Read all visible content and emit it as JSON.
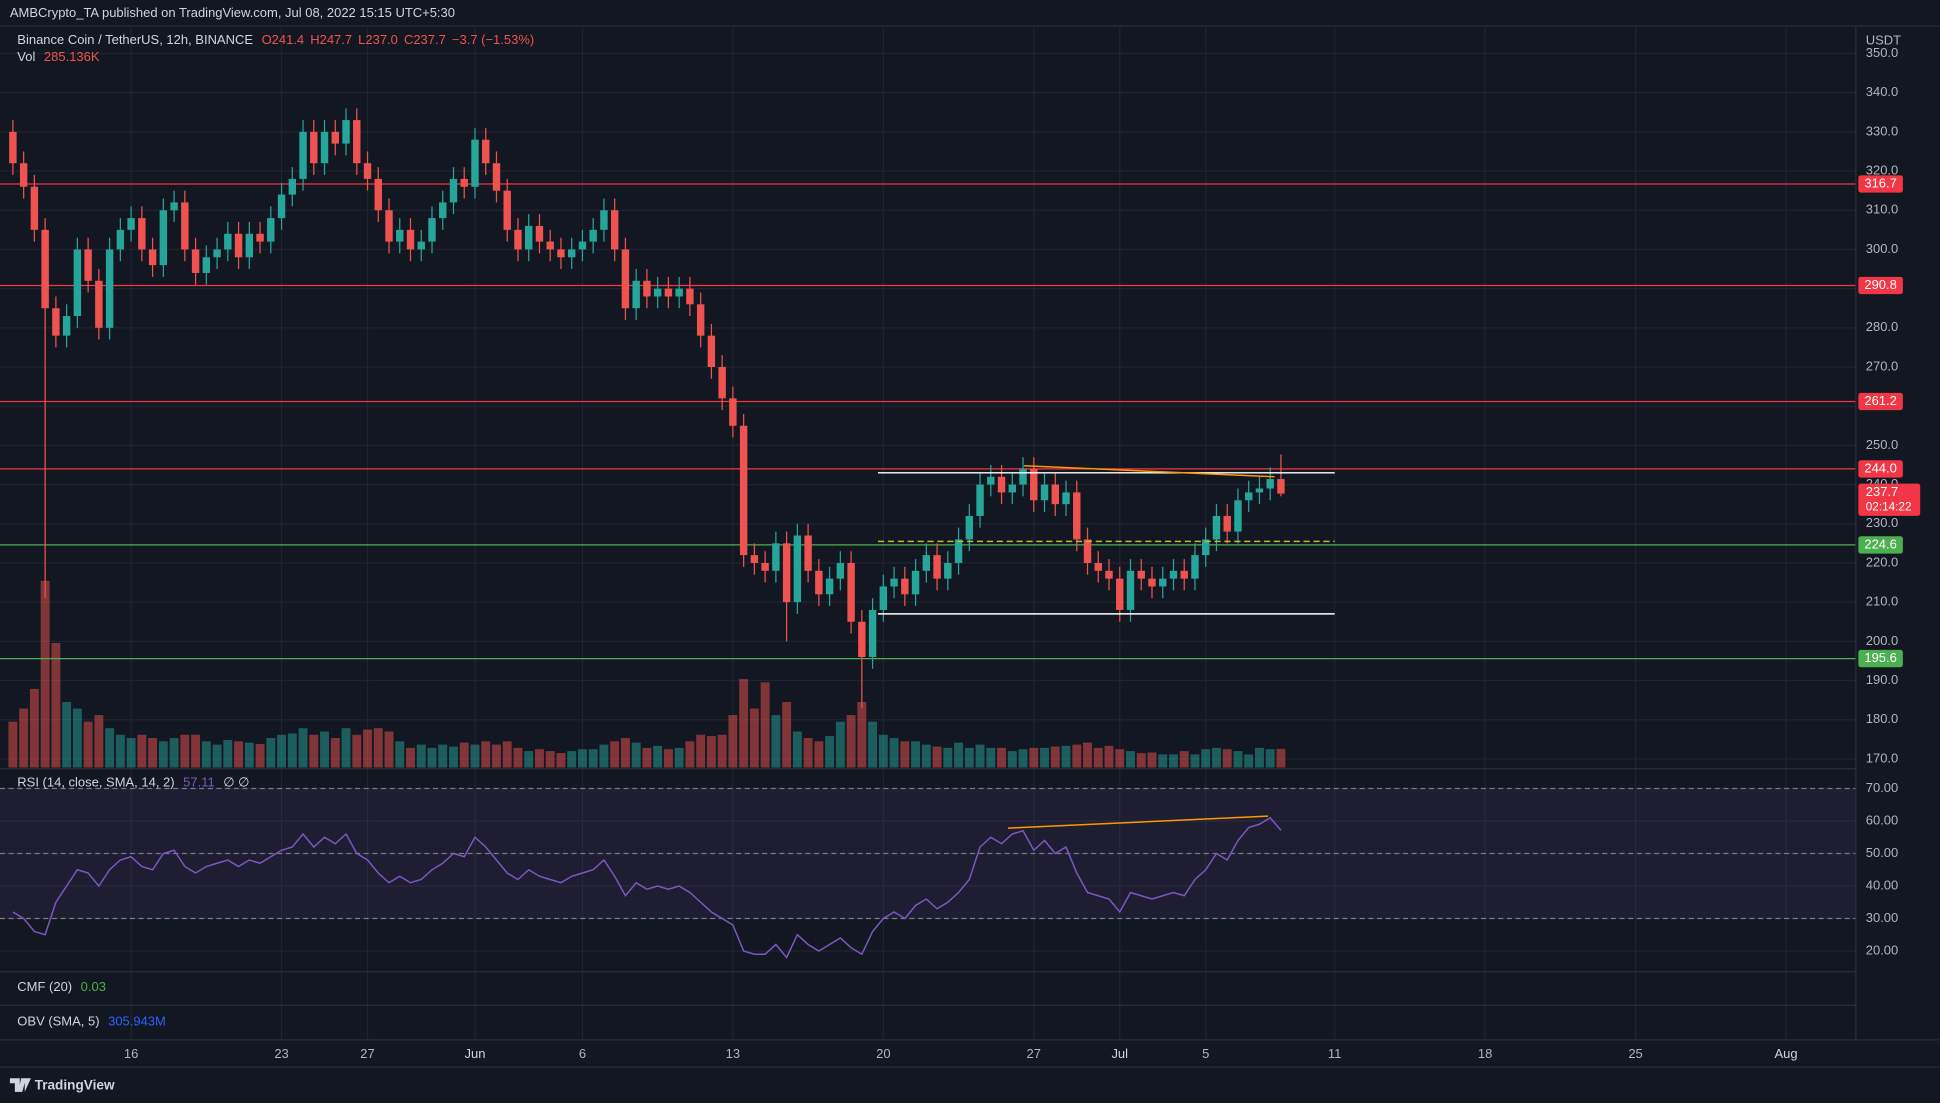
{
  "header": {
    "publisher": "AMBCrypto_TA published on TradingView.com, Jul 08, 2022 15:15 UTC+5:30",
    "symbol": "Binance Coin / TetherUS, 12h, BINANCE",
    "ohlc": [
      "O241.4",
      "H247.7",
      "L237.0",
      "C237.7",
      "−3.7 (−1.53%)"
    ],
    "currency": "USDT",
    "footer": "TradingView"
  },
  "chart_data": {
    "type": "candlestick",
    "xlim": [
      -1.2,
      171.5
    ],
    "ylim": [
      167.8,
      356.7
    ],
    "xticks": [
      {
        "value": 11,
        "label": "16"
      },
      {
        "value": 25,
        "label": "23"
      },
      {
        "value": 33,
        "label": "27"
      },
      {
        "value": 43,
        "label": "Jun"
      },
      {
        "value": 53,
        "label": "6"
      },
      {
        "value": 67,
        "label": "13"
      },
      {
        "value": 81,
        "label": "20"
      },
      {
        "value": 95,
        "label": "27"
      },
      {
        "value": 103,
        "label": "Jul"
      },
      {
        "value": 111,
        "label": "5"
      },
      {
        "value": 123,
        "label": "11"
      },
      {
        "value": 137,
        "label": "18"
      },
      {
        "value": 151,
        "label": "25"
      },
      {
        "value": 165,
        "label": "Aug"
      }
    ],
    "yticks": [
      {
        "value": 170,
        "label": "170.0"
      },
      {
        "value": 180,
        "label": "180.0"
      },
      {
        "value": 190,
        "label": "190.0"
      },
      {
        "value": 200,
        "label": "200.0"
      },
      {
        "value": 210,
        "label": "210.0"
      },
      {
        "value": 220,
        "label": "220.0"
      },
      {
        "value": 230,
        "label": "230.0"
      },
      {
        "value": 240,
        "label": "240.0"
      },
      {
        "value": 250,
        "label": "250.0"
      },
      {
        "value": 260,
        "label": "260.0"
      },
      {
        "value": 270,
        "label": "270.0"
      },
      {
        "value": 280,
        "label": "280.0"
      },
      {
        "value": 290,
        "label": "290.0"
      },
      {
        "value": 300,
        "label": "300.0"
      },
      {
        "value": 310,
        "label": "310.0"
      },
      {
        "value": 320,
        "label": "320.0"
      },
      {
        "value": 330,
        "label": "330.0"
      },
      {
        "value": 340,
        "label": "340.0"
      },
      {
        "value": 350,
        "label": "350.0"
      }
    ],
    "up_color": "#26a69a",
    "down_color": "#ef5350",
    "open": [
      330,
      322,
      316,
      305,
      285,
      278,
      283,
      300,
      292,
      280,
      300,
      305,
      308,
      300,
      296,
      310,
      312,
      300,
      294,
      298,
      300,
      304,
      298,
      304,
      302,
      308,
      314,
      318,
      330,
      322,
      330,
      327,
      333,
      322,
      318,
      310,
      302,
      305,
      300,
      302,
      308,
      312,
      318,
      316,
      328,
      322,
      315,
      305,
      300,
      306,
      302,
      300,
      298,
      300,
      302,
      305,
      310,
      300,
      285,
      292,
      288,
      290,
      288,
      290,
      286,
      278,
      270,
      262,
      255,
      222,
      220,
      218,
      225,
      210,
      227,
      218,
      212,
      216,
      220,
      205,
      196,
      208,
      214,
      216,
      212,
      218,
      222,
      216,
      220,
      226,
      232,
      240,
      242,
      238,
      240,
      244,
      236,
      240,
      235,
      238,
      226,
      220,
      218,
      216,
      208,
      218,
      216,
      214,
      216,
      218,
      216,
      222,
      226,
      232,
      228,
      236,
      238,
      239,
      241.4
    ],
    "high": [
      333,
      325,
      319,
      308,
      288,
      286,
      303,
      303,
      295,
      303,
      308,
      311,
      311,
      303,
      313,
      315,
      315,
      303,
      301,
      303,
      307,
      307,
      307,
      307,
      311,
      317,
      321,
      333,
      333,
      333,
      333,
      336,
      336,
      325,
      321,
      313,
      308,
      308,
      305,
      311,
      315,
      321,
      321,
      331,
      331,
      325,
      318,
      308,
      309,
      309,
      305,
      303,
      303,
      305,
      308,
      313,
      313,
      303,
      295,
      295,
      293,
      293,
      293,
      293,
      289,
      281,
      273,
      265,
      258,
      225,
      223,
      228,
      228,
      230,
      230,
      221,
      219,
      223,
      223,
      208,
      211,
      217,
      219,
      219,
      221,
      225,
      225,
      223,
      229,
      235,
      243,
      245,
      245,
      243,
      247,
      247,
      243,
      243,
      241,
      241,
      229,
      223,
      221,
      219,
      221,
      221,
      219,
      219,
      221,
      221,
      225,
      229,
      235,
      235,
      239,
      241,
      242,
      244.4,
      247.7
    ],
    "low": [
      319,
      313,
      302,
      211,
      275,
      275,
      280,
      289,
      277,
      277,
      297,
      302,
      297,
      293,
      293,
      307,
      297,
      291,
      291,
      295,
      297,
      295,
      295,
      299,
      299,
      305,
      311,
      315,
      319,
      319,
      324,
      324,
      319,
      315,
      307,
      299,
      299,
      297,
      297,
      299,
      305,
      309,
      313,
      313,
      319,
      312,
      302,
      297,
      297,
      299,
      297,
      295,
      295,
      297,
      299,
      302,
      297,
      282,
      282,
      285,
      285,
      285,
      285,
      283,
      275,
      267,
      259,
      252,
      219,
      217,
      215,
      215,
      200,
      207,
      215,
      209,
      209,
      213,
      202,
      183,
      193,
      205,
      211,
      209,
      209,
      215,
      213,
      213,
      217,
      223,
      229,
      237,
      235,
      235,
      237,
      233,
      233,
      232,
      232,
      223,
      217,
      215,
      213,
      205,
      205,
      213,
      211,
      211,
      213,
      213,
      213,
      219,
      223,
      225,
      225,
      233,
      235,
      236,
      237.0
    ],
    "close": [
      322,
      316,
      305,
      285,
      278,
      283,
      300,
      292,
      280,
      300,
      305,
      308,
      300,
      296,
      310,
      312,
      300,
      294,
      298,
      300,
      304,
      298,
      304,
      302,
      308,
      314,
      318,
      330,
      322,
      330,
      327,
      333,
      322,
      318,
      310,
      302,
      305,
      300,
      302,
      308,
      312,
      318,
      316,
      328,
      322,
      315,
      305,
      300,
      306,
      302,
      300,
      298,
      300,
      302,
      305,
      310,
      300,
      285,
      292,
      288,
      290,
      288,
      290,
      286,
      278,
      270,
      262,
      255,
      222,
      220,
      218,
      225,
      210,
      227,
      218,
      212,
      216,
      220,
      205,
      196,
      208,
      214,
      216,
      212,
      218,
      222,
      216,
      220,
      226,
      232,
      240,
      242,
      238,
      240,
      244,
      236,
      240,
      235,
      238,
      226,
      220,
      218,
      216,
      208,
      218,
      216,
      214,
      216,
      218,
      216,
      222,
      226,
      232,
      228,
      236,
      238,
      239,
      241.4,
      237.7
    ],
    "countdown": "02:14:22",
    "current_color": "#f23645",
    "levels": [
      {
        "value": 316.7,
        "color": "#f23645"
      },
      {
        "value": 290.8,
        "color": "#f23645"
      },
      {
        "value": 261.2,
        "color": "#f23645"
      },
      {
        "value": 244,
        "label": "244.0",
        "color": "#f23645"
      },
      {
        "value": 224.6,
        "color": "#4caf50"
      },
      {
        "value": 195.6,
        "color": "#4caf50"
      }
    ],
    "drawings": [
      {
        "type": "segment",
        "from": [
          80.5,
          243
        ],
        "to": [
          123,
          243
        ],
        "color": "#ffffff",
        "dashed": false
      },
      {
        "type": "segment",
        "from": [
          80.5,
          207
        ],
        "to": [
          123,
          207
        ],
        "color": "#ffffff",
        "dashed": false
      },
      {
        "type": "segment",
        "from": [
          80.5,
          225.5
        ],
        "to": [
          123,
          225.5
        ],
        "color": "#c8b632",
        "dashed": true
      },
      {
        "type": "segment",
        "from": [
          94.1,
          244.8
        ],
        "to": [
          117.4,
          242
        ],
        "color": "#ff9800",
        "dashed": false
      }
    ],
    "volume": {
      "name": "Vol",
      "last_label": "285.136K",
      "ylim": [
        0,
        11300
      ],
      "values": [
        700,
        900,
        1200,
        2850,
        1900,
        1000,
        900,
        700,
        800,
        600,
        500,
        450,
        500,
        450,
        400,
        450,
        500,
        500,
        400,
        350,
        420,
        400,
        380,
        360,
        450,
        500,
        520,
        600,
        500,
        550,
        450,
        600,
        500,
        580,
        600,
        550,
        400,
        300,
        350,
        300,
        350,
        320,
        380,
        350,
        400,
        350,
        400,
        300,
        250,
        280,
        250,
        220,
        250,
        280,
        280,
        350,
        400,
        450,
        380,
        300,
        330,
        280,
        300,
        400,
        500,
        480,
        500,
        800,
        1350,
        900,
        1300,
        800,
        1000,
        550,
        450,
        400,
        480,
        700,
        800,
        1000,
        700,
        500,
        450,
        400,
        400,
        350,
        320,
        300,
        380,
        300,
        350,
        300,
        300,
        250,
        280,
        300,
        300,
        320,
        330,
        350,
        380,
        300,
        330,
        280,
        250,
        220,
        230,
        200,
        200,
        250,
        200,
        280,
        300,
        280,
        250,
        200,
        300,
        280,
        285.136
      ]
    },
    "rsi": {
      "name": "RSI (14, close, SMA, 14, 2)",
      "extra": "∅ ∅",
      "color": "#7e57c2",
      "ylim": [
        13.6,
        75.7
      ],
      "band": [
        30,
        70
      ],
      "levels": [
        70,
        50,
        30
      ],
      "yticks": [
        {
          "value": 20,
          "label": "20.00"
        },
        {
          "value": 30,
          "label": "30.00"
        },
        {
          "value": 40,
          "label": "40.00"
        },
        {
          "value": 50,
          "label": "50.00"
        },
        {
          "value": 60,
          "label": "60.00"
        },
        {
          "value": 70,
          "label": "70.00"
        }
      ],
      "values": [
        32,
        30,
        26,
        25,
        35,
        40,
        45,
        44,
        40,
        45,
        48,
        49,
        46,
        45,
        50,
        51,
        46,
        44,
        46,
        47,
        48,
        46,
        48,
        47,
        49,
        51,
        52,
        56,
        52,
        55,
        53,
        56,
        50,
        48,
        44,
        41,
        43,
        41,
        42,
        45,
        47,
        50,
        49,
        55,
        52,
        48,
        44,
        42,
        45,
        43,
        42,
        41,
        43,
        44,
        45,
        48,
        43,
        37,
        41,
        39,
        40,
        39,
        40,
        38,
        35,
        32,
        30,
        28,
        20,
        19,
        19,
        22,
        18,
        25,
        22,
        20,
        22,
        24,
        21,
        19,
        26,
        30,
        32,
        30,
        34,
        36,
        33,
        35,
        38,
        42,
        52,
        55,
        53,
        56,
        57,
        51,
        54,
        50,
        52,
        44,
        38,
        37,
        36,
        32,
        38,
        37,
        36,
        37,
        38,
        37,
        42,
        45,
        50,
        48,
        54,
        58,
        59,
        61,
        57.11
      ],
      "trendline": {
        "from": [
          92.6,
          57.8
        ],
        "to": [
          116.8,
          61.5
        ],
        "color": "#ff9800"
      }
    },
    "cmf": {
      "name": "CMF (20)",
      "value": 0.03,
      "color": "#4caf50"
    },
    "obv": {
      "name": "OBV (SMA, 5)",
      "value_label": "305.943M",
      "color": "#2962ff"
    }
  }
}
